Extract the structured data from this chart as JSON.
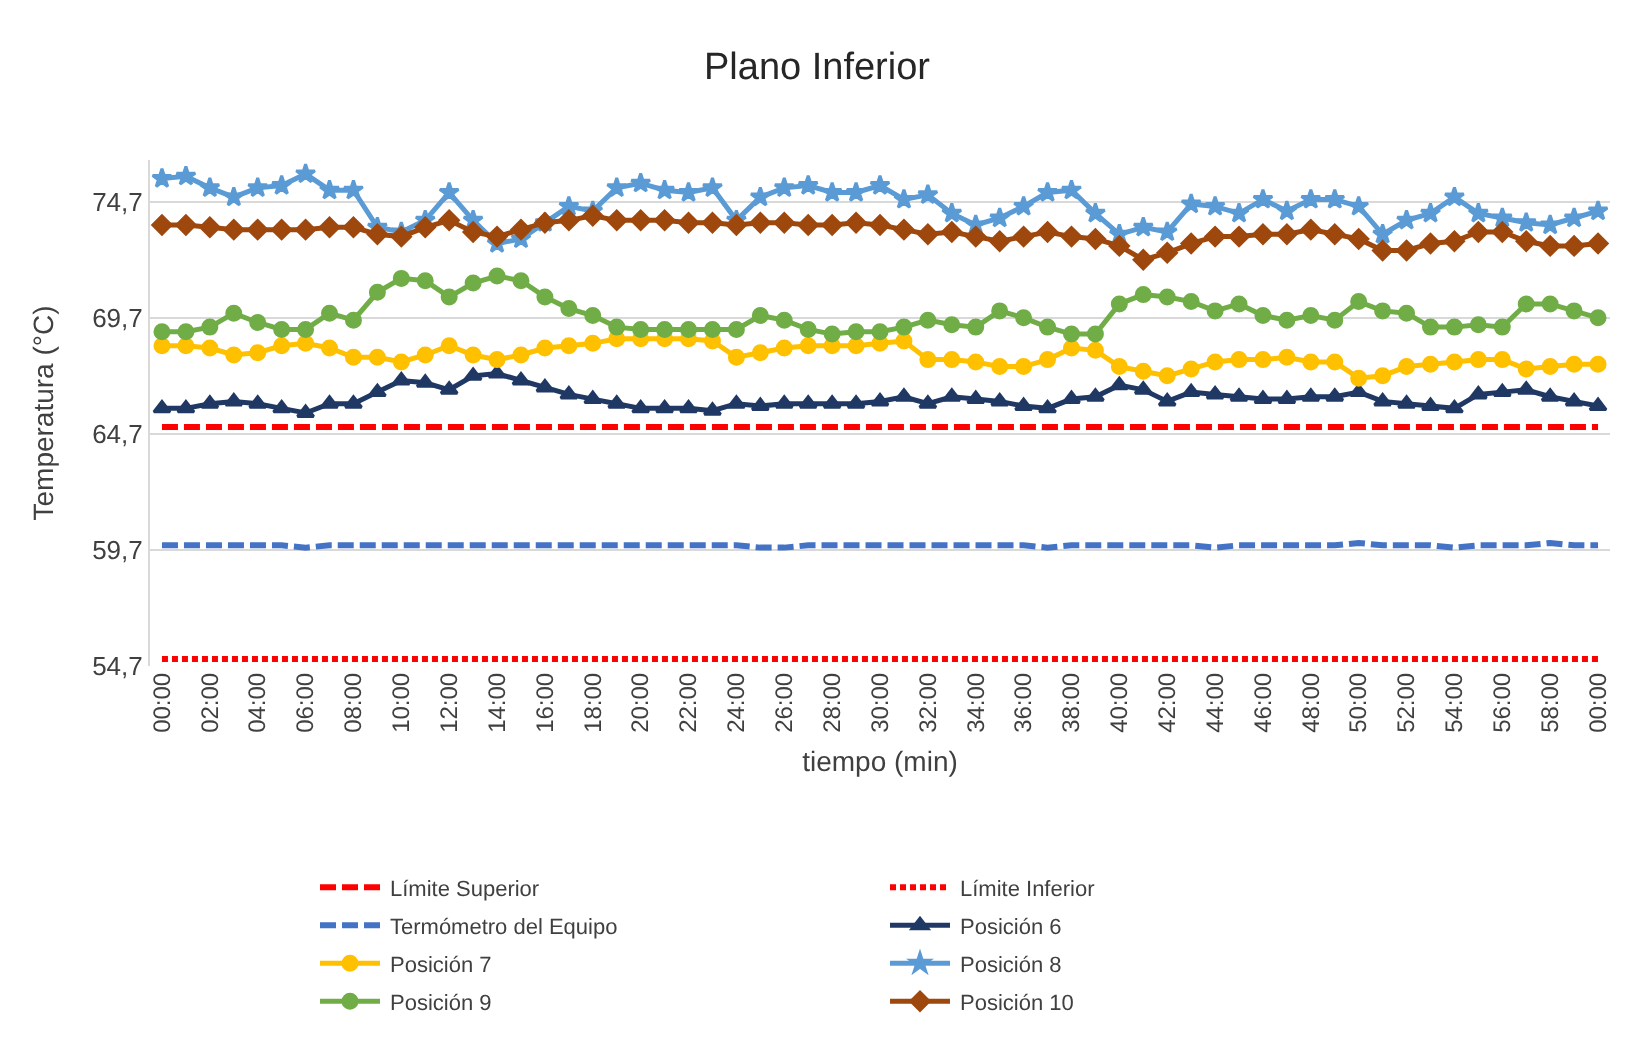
{
  "chart_data": {
    "type": "line",
    "title": "Plano Inferior",
    "xlabel": "tiempo (min)",
    "ylabel": "Temperatura (°C)",
    "categories": [
      "00:00",
      null,
      "02:00",
      null,
      "04:00",
      null,
      "06:00",
      null,
      "08:00",
      null,
      "10:00",
      null,
      "12:00",
      null,
      "14:00",
      null,
      "16:00",
      null,
      "18:00",
      null,
      "20:00",
      null,
      "22:00",
      null,
      "24:00",
      null,
      "26:00",
      null,
      "28:00",
      null,
      "30:00",
      null,
      "32:00",
      null,
      "34:00",
      null,
      "36:00",
      null,
      "38:00",
      null,
      "40:00",
      null,
      "42:00",
      null,
      "44:00",
      null,
      "46:00",
      null,
      "48:00",
      null,
      "50:00",
      null,
      "52:00",
      null,
      "54:00",
      null,
      "56:00",
      null,
      "58:00",
      null,
      "00:00"
    ],
    "ylim": [
      54.7,
      76.5
    ],
    "yticks": [
      {
        "value": 54.7,
        "label": "54,7"
      },
      {
        "value": 59.7,
        "label": "59,7"
      },
      {
        "value": 64.7,
        "label": "64,7"
      },
      {
        "value": 69.7,
        "label": "69,7"
      },
      {
        "value": 74.7,
        "label": "74,7"
      }
    ],
    "grid": "y",
    "legend": "bottom",
    "series": [
      {
        "name": "Límite Superior",
        "color": "#ff0000",
        "line_style": "dashed",
        "marker": "none",
        "values": [
          65,
          65,
          65,
          65,
          65,
          65,
          65,
          65,
          65,
          65,
          65,
          65,
          65,
          65,
          65,
          65,
          65,
          65,
          65,
          65,
          65,
          65,
          65,
          65,
          65,
          65,
          65,
          65,
          65,
          65,
          65,
          65,
          65,
          65,
          65,
          65,
          65,
          65,
          65,
          65,
          65,
          65,
          65,
          65,
          65,
          65,
          65,
          65,
          65,
          65,
          65,
          65,
          65,
          65,
          65,
          65,
          65,
          65,
          65,
          65,
          65
        ]
      },
      {
        "name": "Límite Inferior",
        "color": "#ff0000",
        "line_style": "dotted",
        "marker": "none",
        "values": [
          55,
          55,
          55,
          55,
          55,
          55,
          55,
          55,
          55,
          55,
          55,
          55,
          55,
          55,
          55,
          55,
          55,
          55,
          55,
          55,
          55,
          55,
          55,
          55,
          55,
          55,
          55,
          55,
          55,
          55,
          55,
          55,
          55,
          55,
          55,
          55,
          55,
          55,
          55,
          55,
          55,
          55,
          55,
          55,
          55,
          55,
          55,
          55,
          55,
          55,
          55,
          55,
          55,
          55,
          55,
          55,
          55,
          55,
          55,
          55,
          55
        ]
      },
      {
        "name": "Termómetro del Equipo",
        "color": "#4472c4",
        "line_style": "dashed",
        "marker": "none",
        "values": [
          59.9,
          59.9,
          59.9,
          59.9,
          59.9,
          59.9,
          59.8,
          59.9,
          59.9,
          59.9,
          59.9,
          59.9,
          59.9,
          59.9,
          59.9,
          59.9,
          59.9,
          59.9,
          59.9,
          59.9,
          59.9,
          59.9,
          59.9,
          59.9,
          59.9,
          59.8,
          59.8,
          59.9,
          59.9,
          59.9,
          59.9,
          59.9,
          59.9,
          59.9,
          59.9,
          59.9,
          59.9,
          59.8,
          59.9,
          59.9,
          59.9,
          59.9,
          59.9,
          59.9,
          59.8,
          59.9,
          59.9,
          59.9,
          59.9,
          59.9,
          60.0,
          59.9,
          59.9,
          59.9,
          59.8,
          59.9,
          59.9,
          59.9,
          60.0,
          59.9,
          59.9
        ]
      },
      {
        "name": "Posición 6",
        "color": "#203864",
        "line_style": "solid",
        "marker": "triangle",
        "values": [
          65.8,
          65.8,
          66.0,
          66.1,
          66.0,
          65.8,
          65.6,
          66.0,
          66.0,
          66.5,
          67.0,
          66.9,
          66.6,
          67.2,
          67.3,
          67.0,
          66.7,
          66.4,
          66.2,
          66.0,
          65.8,
          65.8,
          65.8,
          65.7,
          66.0,
          65.9,
          66.0,
          66.0,
          66.0,
          66.0,
          66.1,
          66.3,
          66.0,
          66.3,
          66.2,
          66.1,
          65.9,
          65.8,
          66.2,
          66.3,
          66.8,
          66.6,
          66.1,
          66.5,
          66.4,
          66.3,
          66.2,
          66.2,
          66.3,
          66.3,
          66.5,
          66.1,
          66.0,
          65.9,
          65.8,
          66.4,
          66.5,
          66.6,
          66.3,
          66.1,
          65.9
        ]
      },
      {
        "name": "Posición 7",
        "color": "#ffc000",
        "line_style": "solid",
        "marker": "circle",
        "values": [
          68.5,
          68.5,
          68.4,
          68.1,
          68.2,
          68.5,
          68.6,
          68.4,
          68.0,
          68.0,
          67.8,
          68.1,
          68.5,
          68.1,
          67.9,
          68.1,
          68.4,
          68.5,
          68.6,
          68.8,
          68.8,
          68.8,
          68.8,
          68.7,
          68.0,
          68.2,
          68.4,
          68.5,
          68.5,
          68.5,
          68.6,
          68.7,
          67.9,
          67.9,
          67.8,
          67.6,
          67.6,
          67.9,
          68.4,
          68.3,
          67.6,
          67.4,
          67.2,
          67.5,
          67.8,
          67.9,
          67.9,
          68.0,
          67.8,
          67.8,
          67.1,
          67.2,
          67.6,
          67.7,
          67.8,
          67.9,
          67.9,
          67.5,
          67.6,
          67.7,
          67.7
        ]
      },
      {
        "name": "Posición 8",
        "color": "#5b9bd5",
        "line_style": "solid",
        "marker": "star",
        "values": [
          75.7,
          75.8,
          75.3,
          74.9,
          75.3,
          75.4,
          75.9,
          75.2,
          75.2,
          73.6,
          73.4,
          73.9,
          75.1,
          73.9,
          72.9,
          73.1,
          73.8,
          74.5,
          74.3,
          75.3,
          75.5,
          75.2,
          75.1,
          75.3,
          73.9,
          74.9,
          75.3,
          75.4,
          75.1,
          75.1,
          75.4,
          74.8,
          75.0,
          74.2,
          73.7,
          74.0,
          74.5,
          75.1,
          75.2,
          74.2,
          73.3,
          73.6,
          73.4,
          74.6,
          74.5,
          74.2,
          74.8,
          74.3,
          74.8,
          74.8,
          74.5,
          73.3,
          73.9,
          74.2,
          74.9,
          74.2,
          74.0,
          73.8,
          73.7,
          74.0,
          74.3
        ]
      },
      {
        "name": "Posición 9",
        "color": "#70ad47",
        "line_style": "solid",
        "marker": "circle",
        "values": [
          69.1,
          69.1,
          69.3,
          69.9,
          69.5,
          69.2,
          69.2,
          69.9,
          69.6,
          70.8,
          71.4,
          71.3,
          70.6,
          71.2,
          71.5,
          71.3,
          70.6,
          70.1,
          69.8,
          69.3,
          69.2,
          69.2,
          69.2,
          69.2,
          69.2,
          69.8,
          69.6,
          69.2,
          69.0,
          69.1,
          69.1,
          69.3,
          69.6,
          69.4,
          69.3,
          70.0,
          69.7,
          69.3,
          69.0,
          69.0,
          70.3,
          70.7,
          70.6,
          70.4,
          70.0,
          70.3,
          69.8,
          69.6,
          69.8,
          69.6,
          70.4,
          70.0,
          69.9,
          69.3,
          69.3,
          69.4,
          69.3,
          70.3,
          70.3,
          70.0,
          69.7
        ]
      },
      {
        "name": "Posición 10",
        "color": "#9e480e",
        "line_style": "solid",
        "marker": "diamond",
        "values": [
          73.7,
          73.7,
          73.6,
          73.5,
          73.5,
          73.5,
          73.5,
          73.6,
          73.6,
          73.3,
          73.2,
          73.6,
          73.9,
          73.4,
          73.2,
          73.5,
          73.8,
          73.9,
          74.1,
          73.9,
          73.9,
          73.9,
          73.8,
          73.8,
          73.7,
          73.8,
          73.8,
          73.7,
          73.7,
          73.8,
          73.7,
          73.5,
          73.3,
          73.4,
          73.2,
          73.0,
          73.2,
          73.4,
          73.2,
          73.1,
          72.8,
          72.2,
          72.5,
          72.9,
          73.2,
          73.2,
          73.3,
          73.3,
          73.5,
          73.3,
          73.1,
          72.6,
          72.6,
          72.9,
          73.0,
          73.4,
          73.4,
          73.0,
          72.8,
          72.8,
          72.9
        ]
      }
    ]
  }
}
